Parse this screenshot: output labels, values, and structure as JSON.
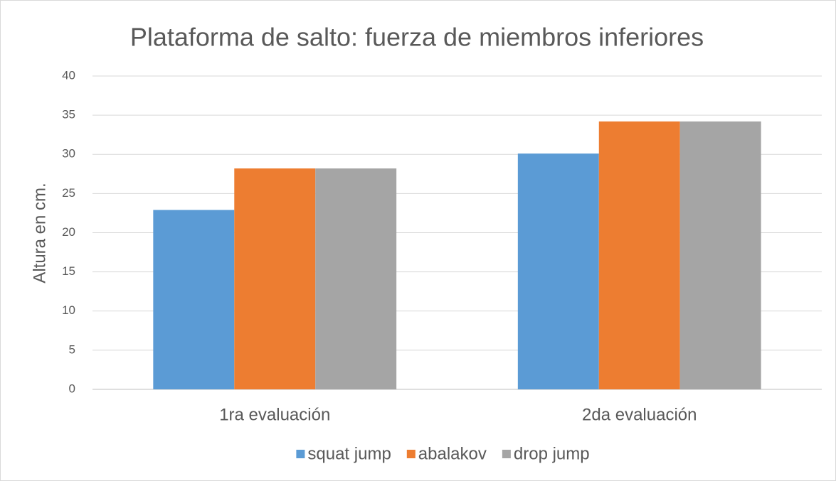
{
  "chart_data": {
    "type": "bar",
    "title": "Plataforma de salto: fuerza de miembros inferiores",
    "y_label": "Altura en cm.",
    "categories": [
      "1ra evaluación",
      "2da evaluación"
    ],
    "series": [
      {
        "name": "squat jump",
        "color": "#5b9bd5",
        "values": [
          22.9,
          30.1
        ]
      },
      {
        "name": "abalakov",
        "color": "#ed7d31",
        "values": [
          28.2,
          34.2
        ]
      },
      {
        "name": "drop jump",
        "color": "#a5a5a5",
        "values": [
          28.2,
          34.2
        ]
      }
    ],
    "ylim": [
      0,
      40
    ],
    "yticks": [
      0,
      5,
      10,
      15,
      20,
      25,
      30,
      35,
      40
    ],
    "grid": true,
    "legend": "bottom"
  }
}
